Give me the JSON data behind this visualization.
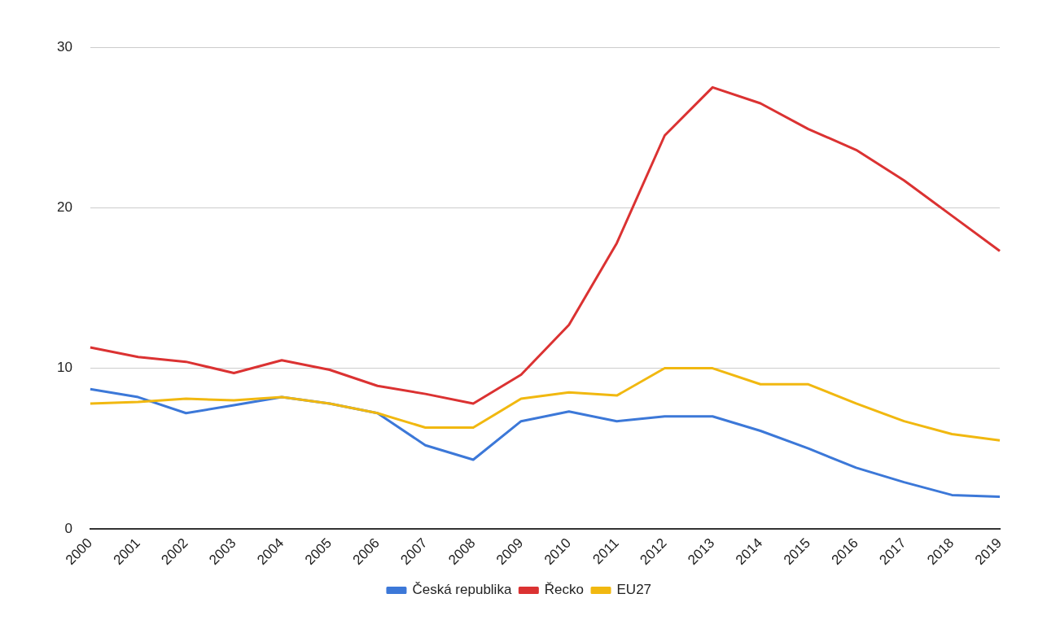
{
  "chart_data": {
    "type": "line",
    "categories": [
      "2000",
      "2001",
      "2002",
      "2003",
      "2004",
      "2005",
      "2006",
      "2007",
      "2008",
      "2009",
      "2010",
      "2011",
      "2012",
      "2013",
      "2014",
      "2015",
      "2016",
      "2017",
      "2018",
      "2019"
    ],
    "series": [
      {
        "name": "Česká republika",
        "color": "#3c78d8",
        "values": [
          8.7,
          8.2,
          7.2,
          7.7,
          8.2,
          7.8,
          7.2,
          5.2,
          4.3,
          6.7,
          7.3,
          6.7,
          7.0,
          7.0,
          6.1,
          5.0,
          3.8,
          2.9,
          2.1,
          2.0
        ]
      },
      {
        "name": "Řecko",
        "color": "#db3232",
        "values": [
          11.3,
          10.7,
          10.4,
          9.7,
          10.5,
          9.9,
          8.9,
          8.4,
          7.8,
          9.6,
          12.7,
          17.8,
          24.5,
          27.5,
          26.5,
          24.9,
          23.6,
          21.7,
          19.5,
          17.3
        ]
      },
      {
        "name": "EU27",
        "color": "#f1b810",
        "values": [
          7.8,
          7.9,
          8.1,
          8.0,
          8.2,
          7.8,
          7.2,
          6.3,
          6.3,
          8.1,
          8.5,
          8.3,
          10.0,
          10.0,
          9.0,
          9.0,
          7.8,
          6.7,
          5.9,
          5.5
        ]
      }
    ],
    "ylim": [
      0,
      30
    ],
    "yticks": [
      0,
      10,
      20,
      30
    ],
    "grid": "y",
    "legend": "bottom",
    "marker": "none",
    "line_style": "solid"
  }
}
